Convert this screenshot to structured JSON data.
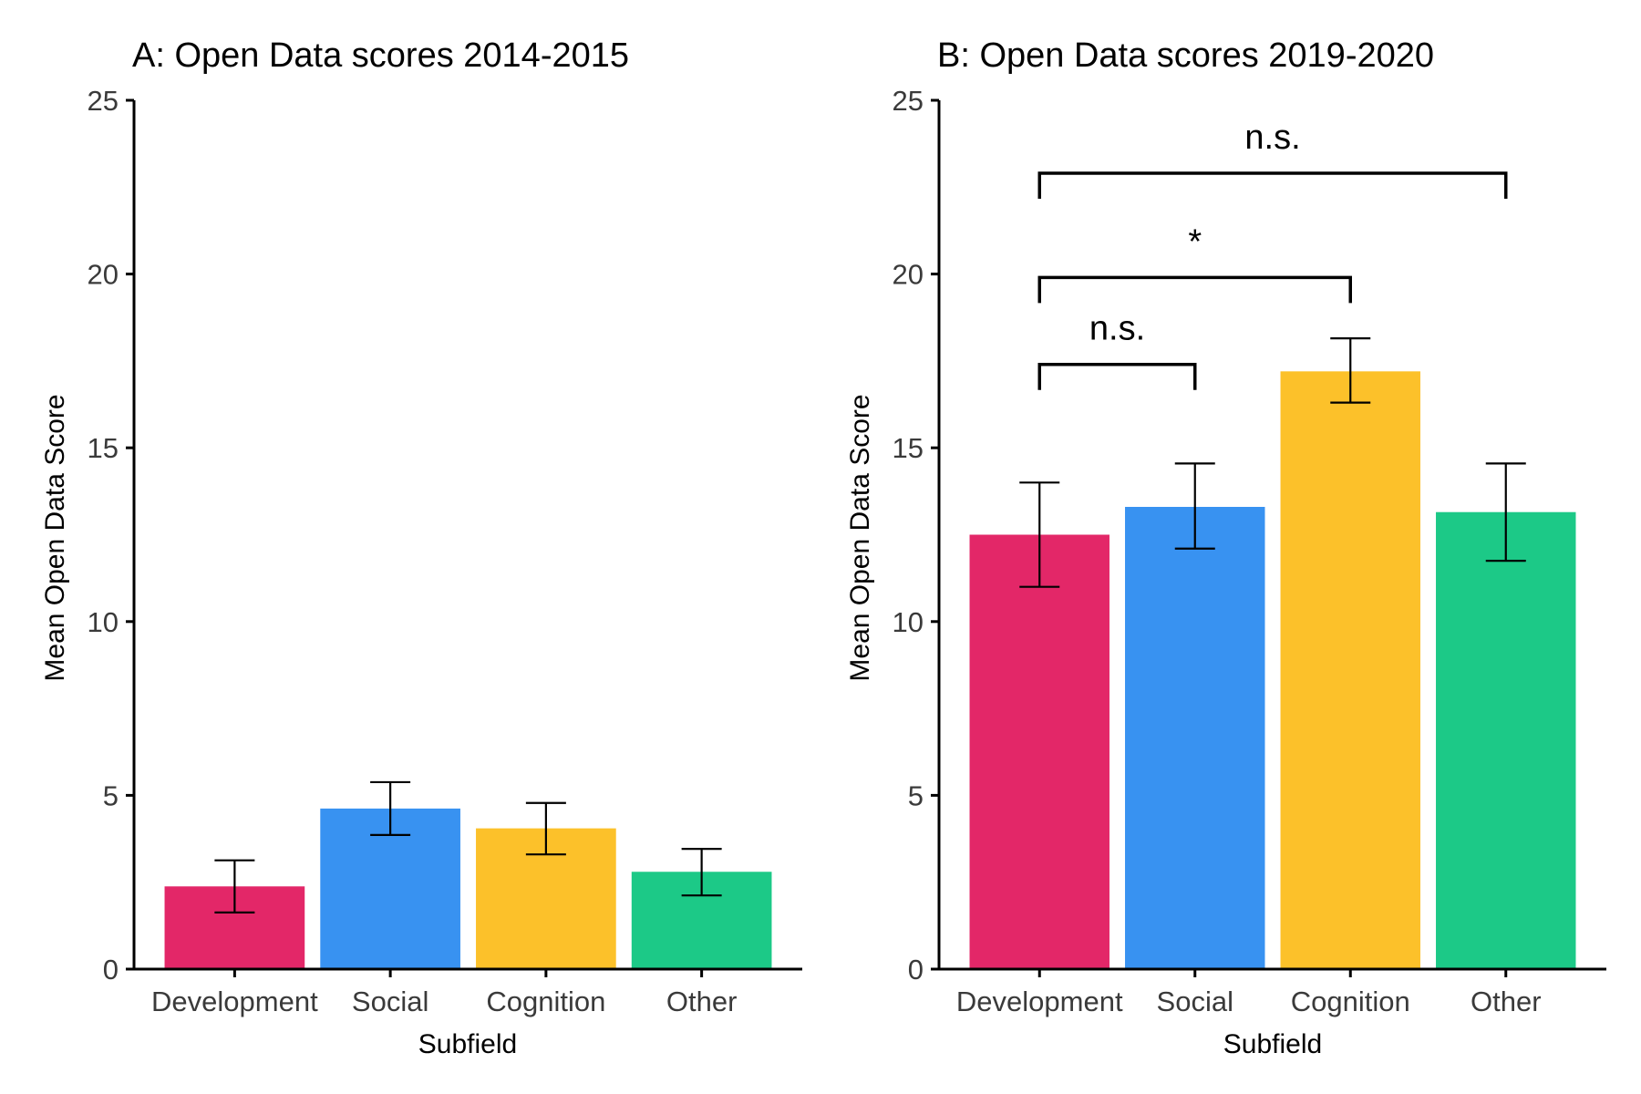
{
  "chart_data": [
    {
      "type": "bar",
      "title": "A: Open Data scores 2014-2015",
      "xlabel": "Subfield",
      "ylabel": "Mean Open Data Score",
      "ylim": [
        0,
        25
      ],
      "yticks": [
        0,
        5,
        10,
        15,
        20,
        25
      ],
      "grid": false,
      "categories": [
        "Development",
        "Social",
        "Cognition",
        "Other"
      ],
      "colors": [
        "#e32768",
        "#3892f1",
        "#fcc12a",
        "#1cc987"
      ],
      "values": [
        2.38,
        4.62,
        4.05,
        2.8
      ],
      "error_low": [
        1.63,
        3.86,
        3.3,
        2.12
      ],
      "error_high": [
        3.13,
        5.38,
        4.78,
        3.46
      ],
      "annotations": []
    },
    {
      "type": "bar",
      "title": "B: Open Data scores 2019-2020",
      "xlabel": "Subfield",
      "ylabel": "Mean Open Data Score",
      "ylim": [
        0,
        25
      ],
      "yticks": [
        0,
        5,
        10,
        15,
        20,
        25
      ],
      "grid": false,
      "categories": [
        "Development",
        "Social",
        "Cognition",
        "Other"
      ],
      "colors": [
        "#e32768",
        "#3892f1",
        "#fcc12a",
        "#1cc987"
      ],
      "values": [
        12.5,
        13.3,
        17.2,
        13.15
      ],
      "error_low": [
        11.0,
        12.1,
        16.3,
        11.75
      ],
      "error_high": [
        14.0,
        14.55,
        18.15,
        14.55
      ],
      "annotations": [
        {
          "label": "n.s.",
          "from": "Development",
          "to": "Social",
          "y": 17.4
        },
        {
          "label": "*",
          "from": "Development",
          "to": "Cognition",
          "y": 19.9
        },
        {
          "label": "n.s.",
          "from": "Development",
          "to": "Other",
          "y": 22.9
        }
      ]
    }
  ]
}
